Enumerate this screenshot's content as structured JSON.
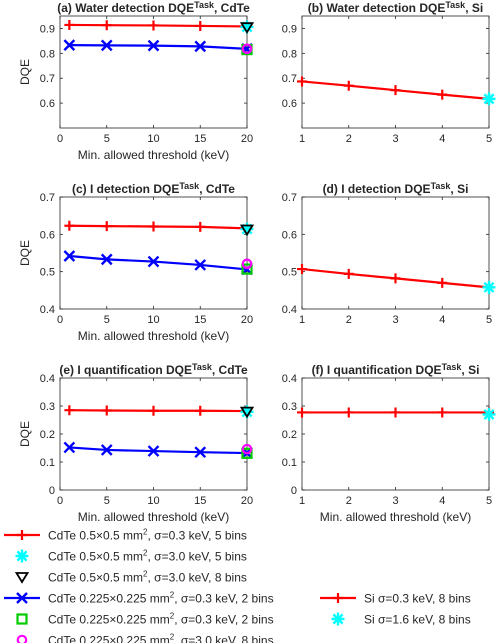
{
  "chart_data": [
    {
      "type": "line",
      "title": "(a) Water detection DQE",
      "title_sup": "Task",
      "title_suffix": ", CdTe",
      "xlabel": "Min. allowed threshold (keV)",
      "ylabel": "DQE",
      "xlim": [
        0,
        20
      ],
      "ylim": [
        0.5,
        0.95
      ],
      "xticks": [
        0,
        5,
        10,
        15,
        20
      ],
      "yticks": [
        0.6,
        0.7,
        0.8,
        0.9
      ],
      "grid": false,
      "series": [
        {
          "name": "CdTe 0.5×0.5 mm², σ=0.3 keV, 5 bins",
          "marker": "plus",
          "color": "#ff0000",
          "x": [
            1,
            5,
            10,
            15,
            20
          ],
          "y": [
            0.914,
            0.913,
            0.912,
            0.91,
            0.908
          ]
        },
        {
          "name": "CdTe 0.225×0.225 mm², σ=0.3 keV, 2 bins",
          "marker": "x",
          "color": "#0000ff",
          "x": [
            1,
            5,
            10,
            15,
            20
          ],
          "y": [
            0.833,
            0.832,
            0.831,
            0.828,
            0.818
          ]
        },
        {
          "name": "CdTe 0.5×0.5 mm², σ=3.0 keV, 5 bins",
          "marker": "asterisk",
          "color": "#00ffff",
          "x": [
            20
          ],
          "y": [
            0.906
          ]
        },
        {
          "name": "CdTe 0.5×0.5 mm², σ=3.0 keV, 8 bins",
          "marker": "triangle",
          "color": "#000000",
          "x": [
            20
          ],
          "y": [
            0.905
          ]
        },
        {
          "name": "CdTe 0.225×0.225 mm², σ=0.3 keV, 2 bins",
          "marker": "square",
          "color": "#00cc00",
          "x": [
            20
          ],
          "y": [
            0.815
          ]
        },
        {
          "name": "CdTe 0.225×0.225 mm², σ=3.0 keV, 8 bins",
          "marker": "circle",
          "color": "#ff00ff",
          "x": [
            20
          ],
          "y": [
            0.818
          ]
        }
      ]
    },
    {
      "type": "line",
      "title": "(b) Water detection DQE",
      "title_sup": "Task",
      "title_suffix": ", Si",
      "xlabel": "",
      "ylabel": "",
      "xlim": [
        1,
        5
      ],
      "ylim": [
        0.5,
        0.95
      ],
      "xticks": [
        1,
        2,
        3,
        4,
        5
      ],
      "yticks": [
        0.6,
        0.7,
        0.8,
        0.9
      ],
      "grid": false,
      "series": [
        {
          "name": "Si σ=0.3 keV, 8 bins",
          "marker": "plus",
          "color": "#ff0000",
          "x": [
            1,
            2,
            3,
            4,
            5
          ],
          "y": [
            0.687,
            0.67,
            0.652,
            0.634,
            0.617
          ]
        },
        {
          "name": "Si σ=1.6 keV, 8 bins",
          "marker": "asterisk",
          "color": "#00ffff",
          "x": [
            5
          ],
          "y": [
            0.617
          ]
        }
      ]
    },
    {
      "type": "line",
      "title": "(c) I detection DQE",
      "title_sup": "Task",
      "title_suffix": ", CdTe",
      "xlabel": "Min. allowed threshold (keV)",
      "ylabel": "DQE",
      "xlim": [
        0,
        20
      ],
      "ylim": [
        0.4,
        0.7
      ],
      "xticks": [
        0,
        5,
        10,
        15,
        20
      ],
      "yticks": [
        0.4,
        0.5,
        0.6,
        0.7
      ],
      "grid": false,
      "series": [
        {
          "name": "CdTe 0.5×0.5 mm², σ=0.3 keV, 5 bins",
          "marker": "plus",
          "color": "#ff0000",
          "x": [
            1,
            5,
            10,
            15,
            20
          ],
          "y": [
            0.623,
            0.622,
            0.621,
            0.62,
            0.616
          ]
        },
        {
          "name": "CdTe 0.225×0.225 mm², σ=0.3 keV, 2 bins",
          "marker": "x",
          "color": "#0000ff",
          "x": [
            1,
            5,
            10,
            15,
            20
          ],
          "y": [
            0.542,
            0.533,
            0.527,
            0.518,
            0.506
          ]
        },
        {
          "name": "CdTe 0.5×0.5 mm², σ=3.0 keV, 5 bins",
          "marker": "asterisk",
          "color": "#00ffff",
          "x": [
            20
          ],
          "y": [
            0.614
          ]
        },
        {
          "name": "CdTe 0.5×0.5 mm², σ=3.0 keV, 8 bins",
          "marker": "triangle",
          "color": "#000000",
          "x": [
            20
          ],
          "y": [
            0.613
          ]
        },
        {
          "name": "CdTe 0.225×0.225 mm², σ=0.3 keV, 2 bins",
          "marker": "square",
          "color": "#00cc00",
          "x": [
            20
          ],
          "y": [
            0.507
          ]
        },
        {
          "name": "CdTe 0.225×0.225 mm², σ=3.0 keV, 8 bins",
          "marker": "circle",
          "color": "#ff00ff",
          "x": [
            20
          ],
          "y": [
            0.521
          ]
        }
      ]
    },
    {
      "type": "line",
      "title": "(d) I detection DQE",
      "title_sup": "Task",
      "title_suffix": ", Si",
      "xlabel": "",
      "ylabel": "",
      "xlim": [
        1,
        5
      ],
      "ylim": [
        0.4,
        0.7
      ],
      "xticks": [
        1,
        2,
        3,
        4,
        5
      ],
      "yticks": [
        0.4,
        0.5,
        0.6,
        0.7
      ],
      "grid": false,
      "series": [
        {
          "name": "Si σ=0.3 keV, 8 bins",
          "marker": "plus",
          "color": "#ff0000",
          "x": [
            1,
            2,
            3,
            4,
            5
          ],
          "y": [
            0.507,
            0.494,
            0.482,
            0.47,
            0.458
          ]
        },
        {
          "name": "Si σ=1.6 keV, 8 bins",
          "marker": "asterisk",
          "color": "#00ffff",
          "x": [
            5
          ],
          "y": [
            0.458
          ]
        }
      ]
    },
    {
      "type": "line",
      "title": "(e) I quantification DQE",
      "title_sup": "Task",
      "title_suffix": ", CdTe",
      "xlabel": "Min. allowed threshold (keV)",
      "ylabel": "DQE",
      "xlim": [
        0,
        20
      ],
      "ylim": [
        0,
        0.4
      ],
      "xticks": [
        0,
        5,
        10,
        15,
        20
      ],
      "yticks": [
        0,
        0.1,
        0.2,
        0.3,
        0.4
      ],
      "grid": false,
      "series": [
        {
          "name": "CdTe 0.5×0.5 mm², σ=0.3 keV, 5 bins",
          "marker": "plus",
          "color": "#ff0000",
          "x": [
            1,
            5,
            10,
            15,
            20
          ],
          "y": [
            0.285,
            0.284,
            0.283,
            0.283,
            0.282
          ]
        },
        {
          "name": "CdTe 0.225×0.225 mm², σ=0.3 keV, 2 bins",
          "marker": "x",
          "color": "#0000ff",
          "x": [
            1,
            5,
            10,
            15,
            20
          ],
          "y": [
            0.152,
            0.143,
            0.139,
            0.135,
            0.132
          ]
        },
        {
          "name": "CdTe 0.5×0.5 mm², σ=3.0 keV, 5 bins",
          "marker": "asterisk",
          "color": "#00ffff",
          "x": [
            20
          ],
          "y": [
            0.279
          ]
        },
        {
          "name": "CdTe 0.5×0.5 mm², σ=3.0 keV, 8 bins",
          "marker": "triangle",
          "color": "#000000",
          "x": [
            20
          ],
          "y": [
            0.28
          ]
        },
        {
          "name": "CdTe 0.225×0.225 mm², σ=0.3 keV, 2 bins",
          "marker": "square",
          "color": "#00cc00",
          "x": [
            20
          ],
          "y": [
            0.131
          ]
        },
        {
          "name": "CdTe 0.225×0.225 mm², σ=3.0 keV, 8 bins",
          "marker": "circle",
          "color": "#ff00ff",
          "x": [
            20
          ],
          "y": [
            0.146
          ]
        }
      ]
    },
    {
      "type": "line",
      "title": "(f) I quantification DQE",
      "title_sup": "Task",
      "title_suffix": ", Si",
      "xlabel": "Min. allowed threshold (keV)",
      "ylabel": "",
      "xlim": [
        1,
        5
      ],
      "ylim": [
        0,
        0.4
      ],
      "xticks": [
        1,
        2,
        3,
        4,
        5
      ],
      "yticks": [
        0,
        0.1,
        0.2,
        0.3,
        0.4
      ],
      "grid": false,
      "series": [
        {
          "name": "Si σ=0.3 keV, 8 bins",
          "marker": "plus",
          "color": "#ff0000",
          "x": [
            1,
            2,
            3,
            4,
            5
          ],
          "y": [
            0.277,
            0.277,
            0.277,
            0.277,
            0.277
          ]
        },
        {
          "name": "Si σ=1.6 keV, 8 bins",
          "marker": "asterisk",
          "color": "#00ffff",
          "x": [
            5
          ],
          "y": [
            0.27
          ]
        }
      ]
    }
  ],
  "legend_left": [
    {
      "marker": "plus",
      "color": "#ff0000",
      "line": true,
      "text": "CdTe 0.5×0.5 mm",
      "sup": "2",
      "rest": ", σ=0.3 keV, 5 bins"
    },
    {
      "marker": "asterisk",
      "color": "#00ffff",
      "line": false,
      "text": "CdTe 0.5×0.5 mm",
      "sup": "2",
      "rest": ", σ=3.0 keV, 5 bins"
    },
    {
      "marker": "triangle",
      "color": "#000000",
      "line": false,
      "text": "CdTe 0.5×0.5 mm",
      "sup": "2",
      "rest": ", σ=3.0 keV, 8 bins"
    },
    {
      "marker": "x",
      "color": "#0000ff",
      "line": true,
      "text": "CdTe 0.225×0.225 mm",
      "sup": "2",
      "rest": ", σ=0.3 keV, 2 bins"
    },
    {
      "marker": "square",
      "color": "#00cc00",
      "line": false,
      "text": "CdTe 0.225×0.225 mm",
      "sup": "2",
      "rest": ", σ=0.3 keV, 2 bins"
    },
    {
      "marker": "circle",
      "color": "#ff00ff",
      "line": false,
      "text": "CdTe 0.225×0.225 mm",
      "sup": "2",
      "rest": ", σ=3.0 keV, 8 bins"
    }
  ],
  "legend_right": [
    {
      "marker": "plus",
      "color": "#ff0000",
      "line": true,
      "text": "Si σ=0.3 keV, 8 bins",
      "sup": "",
      "rest": ""
    },
    {
      "marker": "asterisk",
      "color": "#00ffff",
      "line": false,
      "text": "Si σ=1.6 keV, 8 bins",
      "sup": "",
      "rest": ""
    }
  ]
}
